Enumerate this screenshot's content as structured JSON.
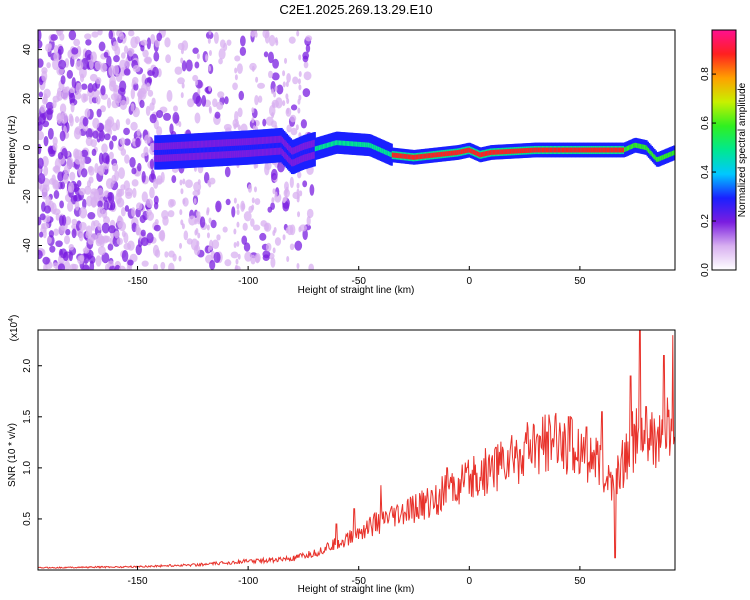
{
  "title": "C2E1.2025.269.13.29.E10",
  "chart_data": [
    {
      "type": "heatmap",
      "name": "spectrogram",
      "xlabel": "Height of straight line (km)",
      "ylabel": "Frequency (Hz)",
      "xlim": [
        -195,
        93
      ],
      "ylim": [
        -50,
        48
      ],
      "xticks": [
        -150,
        -100,
        -50,
        0,
        50
      ],
      "yticks": [
        -40,
        -20,
        0,
        20,
        40
      ],
      "ridge": [
        {
          "x": -140,
          "y": -2
        },
        {
          "x": -120,
          "y": -1
        },
        {
          "x": -100,
          "y": 0
        },
        {
          "x": -85,
          "y": 1
        },
        {
          "x": -80,
          "y": -4
        },
        {
          "x": -75,
          "y": -2
        },
        {
          "x": -60,
          "y": 2
        },
        {
          "x": -45,
          "y": 1
        },
        {
          "x": -35,
          "y": -3
        },
        {
          "x": -25,
          "y": -4
        },
        {
          "x": -15,
          "y": -3
        },
        {
          "x": -5,
          "y": -2
        },
        {
          "x": 0,
          "y": -1
        },
        {
          "x": 5,
          "y": -3
        },
        {
          "x": 10,
          "y": -2
        },
        {
          "x": 30,
          "y": -1
        },
        {
          "x": 55,
          "y": -1
        },
        {
          "x": 70,
          "y": -1
        },
        {
          "x": 75,
          "y": 1
        },
        {
          "x": 80,
          "y": 0
        },
        {
          "x": 85,
          "y": -5
        },
        {
          "x": 93,
          "y": -2
        }
      ]
    },
    {
      "type": "line",
      "name": "snr",
      "xlabel": "Height of straight line (km)",
      "ylabel": "SNR (10 * v/v)",
      "scale_label": "(x10",
      "scale_exp": "4",
      "scale_close": ")",
      "color": "#e8322b",
      "xlim": [
        -195,
        93
      ],
      "ylim": [
        0,
        2.35
      ],
      "xticks": [
        -150,
        -100,
        -50,
        0,
        50
      ],
      "yticks": [
        0.5,
        1.0,
        1.5,
        2.0
      ],
      "ytick_labels": [
        "0.5",
        "1.0",
        "1.5",
        "2.0"
      ],
      "envelope": [
        {
          "x": -195,
          "y": 0.02
        },
        {
          "x": -150,
          "y": 0.03
        },
        {
          "x": -120,
          "y": 0.05
        },
        {
          "x": -100,
          "y": 0.08
        },
        {
          "x": -80,
          "y": 0.1
        },
        {
          "x": -70,
          "y": 0.15
        },
        {
          "x": -55,
          "y": 0.28
        },
        {
          "x": -45,
          "y": 0.4
        },
        {
          "x": -30,
          "y": 0.5
        },
        {
          "x": -20,
          "y": 0.6
        },
        {
          "x": -10,
          "y": 0.7
        },
        {
          "x": 0,
          "y": 0.8
        },
        {
          "x": 10,
          "y": 0.92
        },
        {
          "x": 20,
          "y": 1.02
        },
        {
          "x": 30,
          "y": 1.1
        },
        {
          "x": 40,
          "y": 1.15
        },
        {
          "x": 50,
          "y": 1.12
        },
        {
          "x": 60,
          "y": 0.9
        },
        {
          "x": 65,
          "y": 0.75
        },
        {
          "x": 70,
          "y": 1.0
        },
        {
          "x": 75,
          "y": 1.2
        },
        {
          "x": 80,
          "y": 1.1
        },
        {
          "x": 85,
          "y": 1.2
        },
        {
          "x": 93,
          "y": 1.3
        }
      ],
      "spikes": [
        {
          "x": -60,
          "y": 0.45
        },
        {
          "x": -52,
          "y": 0.6
        },
        {
          "x": -40,
          "y": 0.83
        },
        {
          "x": -10,
          "y": 1.0
        },
        {
          "x": 12,
          "y": 1.2
        },
        {
          "x": 25,
          "y": 1.25
        },
        {
          "x": 35,
          "y": 1.35
        },
        {
          "x": 45,
          "y": 1.5
        },
        {
          "x": 53,
          "y": 1.4
        },
        {
          "x": 60,
          "y": 1.55
        },
        {
          "x": 66,
          "y": 0.12
        },
        {
          "x": 73,
          "y": 1.9
        },
        {
          "x": 77,
          "y": 2.35
        },
        {
          "x": 80,
          "y": 1.6
        },
        {
          "x": 88,
          "y": 2.1
        },
        {
          "x": 92,
          "y": 2.3
        }
      ]
    }
  ],
  "colorbar": {
    "label": "Normalized spectral amplitude",
    "ticks": [
      "0.0",
      "0.2",
      "0.4",
      "0.6",
      "0.8"
    ],
    "tick_values": [
      0.0,
      0.2,
      0.4,
      0.6,
      0.8
    ],
    "colors": [
      "#ffffff",
      "#d8b0f0",
      "#7a1de0",
      "#1a20ff",
      "#00c8ff",
      "#00e890",
      "#30f020",
      "#c8f000",
      "#ffa000",
      "#ff2020",
      "#ff1090"
    ]
  }
}
